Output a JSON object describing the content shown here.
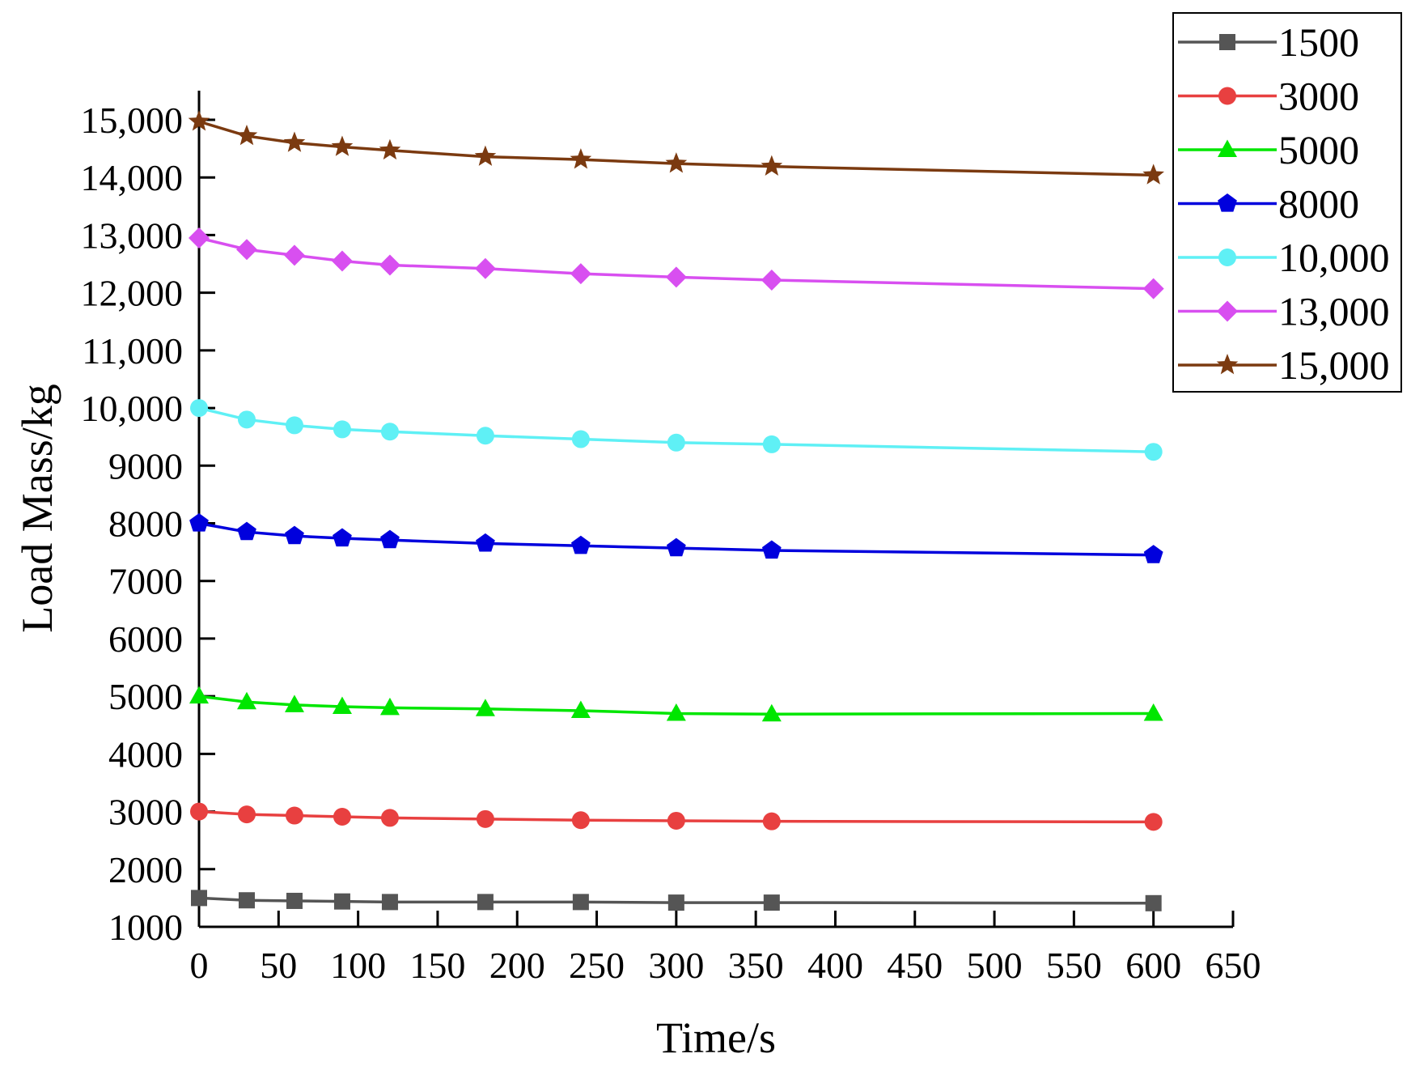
{
  "chart_data": {
    "type": "line",
    "title": "",
    "xlabel": "Time/s",
    "ylabel": "Load Mass/kg",
    "xlim": [
      0,
      650
    ],
    "ylim": [
      1000,
      15000
    ],
    "x_ticks": [
      0,
      50,
      100,
      150,
      200,
      250,
      300,
      350,
      400,
      450,
      500,
      550,
      600,
      650
    ],
    "x_tick_labels": [
      "0",
      "50",
      "100",
      "150",
      "200",
      "250",
      "300",
      "350",
      "400",
      "450",
      "500",
      "550",
      "600",
      "650"
    ],
    "y_ticks": [
      1000,
      2000,
      3000,
      4000,
      5000,
      6000,
      7000,
      8000,
      9000,
      10000,
      11000,
      12000,
      13000,
      14000,
      15000
    ],
    "y_tick_labels": [
      "1000",
      "2000",
      "3000",
      "4000",
      "5000",
      "6000",
      "7000",
      "8000",
      "9000",
      "10,000",
      "11,000",
      "12,000",
      "13,000",
      "14,000",
      "15,000"
    ],
    "grid": false,
    "legend_position": "top-right",
    "x": [
      0,
      30,
      60,
      90,
      120,
      180,
      240,
      300,
      360,
      600
    ],
    "series": [
      {
        "name": "1500",
        "color": "#555555",
        "marker": "square",
        "values": [
          1500,
          1460,
          1450,
          1440,
          1430,
          1430,
          1430,
          1420,
          1420,
          1410
        ]
      },
      {
        "name": "3000",
        "color": "#e84040",
        "marker": "circle",
        "values": [
          3000,
          2950,
          2930,
          2910,
          2890,
          2870,
          2850,
          2840,
          2830,
          2820
        ]
      },
      {
        "name": "5000",
        "color": "#00e600",
        "marker": "triangle",
        "values": [
          5000,
          4900,
          4850,
          4820,
          4800,
          4780,
          4750,
          4700,
          4690,
          4700
        ]
      },
      {
        "name": "8000",
        "color": "#0000dd",
        "marker": "pentagon",
        "values": [
          8000,
          7850,
          7780,
          7740,
          7710,
          7650,
          7610,
          7570,
          7530,
          7450
        ]
      },
      {
        "name": "10,000",
        "color": "#5ff0f5",
        "marker": "circle",
        "values": [
          10000,
          9800,
          9700,
          9630,
          9590,
          9520,
          9460,
          9400,
          9370,
          9240
        ]
      },
      {
        "name": "13,000",
        "color": "#d84ff0",
        "marker": "diamond",
        "values": [
          12950,
          12750,
          12650,
          12550,
          12480,
          12420,
          12330,
          12270,
          12220,
          12070
        ]
      },
      {
        "name": "15,000",
        "color": "#7b3a10",
        "marker": "star",
        "values": [
          14970,
          14720,
          14600,
          14530,
          14470,
          14360,
          14310,
          14240,
          14190,
          14040
        ]
      }
    ]
  }
}
